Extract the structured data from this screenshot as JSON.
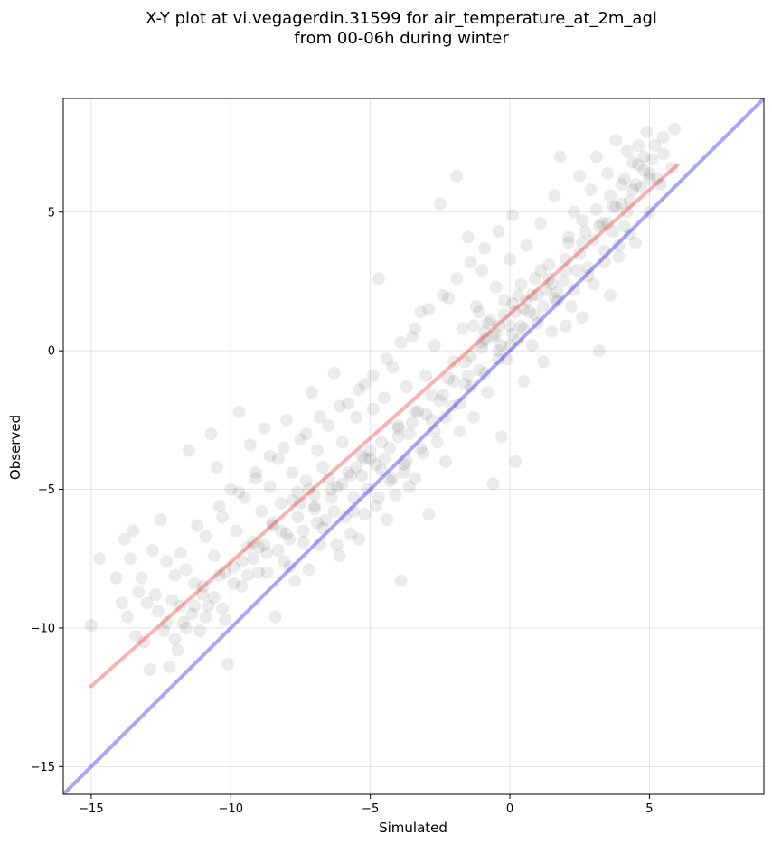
{
  "chart_data": {
    "type": "scatter",
    "title_lines": [
      "X-Y plot at vi.vegagerdin.31599 for air_temperature_at_2m_agl",
      "from 00-06h during winter"
    ],
    "xlabel": "Simulated",
    "ylabel": "Observed",
    "xlim": [
      -16,
      9.1
    ],
    "ylim": [
      -16,
      9.1
    ],
    "xticks": [
      -15,
      -10,
      -5,
      0,
      5
    ],
    "yticks": [
      -15,
      -10,
      -5,
      0,
      5
    ],
    "xtick_labels": [
      "−15",
      "−10",
      "−5",
      "0",
      "5"
    ],
    "ytick_labels": [
      "−15",
      "−10",
      "−5",
      "0",
      "5"
    ],
    "grid": true,
    "scatter_color": "#000000",
    "scatter_alpha": 0.08,
    "lines": [
      {
        "kind": "identity",
        "color": "#0000ff",
        "x": [
          -16,
          9.1
        ],
        "y": [
          -16,
          9.1
        ]
      },
      {
        "kind": "fit",
        "color": "#ee2222",
        "x": [
          -15,
          6
        ],
        "y": [
          -12.1,
          6.7
        ]
      }
    ],
    "points": [
      [
        -15.0,
        -9.9
      ],
      [
        -14.7,
        -7.5
      ],
      [
        -14.1,
        -8.2
      ],
      [
        -13.9,
        -9.1
      ],
      [
        -13.8,
        -6.8
      ],
      [
        -13.7,
        -9.6
      ],
      [
        -13.6,
        -7.5
      ],
      [
        -13.5,
        -6.5
      ],
      [
        -13.4,
        -10.3
      ],
      [
        -13.3,
        -8.7
      ],
      [
        -13.2,
        -8.2
      ],
      [
        -13.1,
        -10.5
      ],
      [
        -13.0,
        -9.1
      ],
      [
        -12.9,
        -11.5
      ],
      [
        -12.8,
        -7.2
      ],
      [
        -12.7,
        -8.8
      ],
      [
        -12.6,
        -9.4
      ],
      [
        -12.5,
        -6.1
      ],
      [
        -12.4,
        -10.1
      ],
      [
        -12.3,
        -7.6
      ],
      [
        -12.2,
        -11.4
      ],
      [
        -12.1,
        -9.0
      ],
      [
        -12.0,
        -8.1
      ],
      [
        -11.9,
        -10.8
      ],
      [
        -11.8,
        -7.3
      ],
      [
        -11.7,
        -9.8
      ],
      [
        -11.6,
        -7.9
      ],
      [
        -11.5,
        -3.6
      ],
      [
        -11.4,
        -9.5
      ],
      [
        -11.3,
        -8.4
      ],
      [
        -11.2,
        -6.3
      ],
      [
        -11.1,
        -10.1
      ],
      [
        -11.0,
        -8.8
      ],
      [
        -10.9,
        -6.7
      ],
      [
        -10.8,
        -9.2
      ],
      [
        -10.7,
        -3.0
      ],
      [
        -10.6,
        -7.4
      ],
      [
        -10.5,
        -4.2
      ],
      [
        -10.4,
        -8.1
      ],
      [
        -10.3,
        -6.0
      ],
      [
        -10.2,
        -9.7
      ],
      [
        -10.1,
        -11.3
      ],
      [
        -10.0,
        -5.0
      ],
      [
        -9.9,
        -7.8
      ],
      [
        -9.8,
        -6.5
      ],
      [
        -9.7,
        -2.2
      ],
      [
        -9.6,
        -8.5
      ],
      [
        -9.5,
        -5.3
      ],
      [
        -9.4,
        -7.1
      ],
      [
        -9.3,
        -3.4
      ],
      [
        -9.2,
        -6.9
      ],
      [
        -9.1,
        -4.6
      ],
      [
        -9.0,
        -8.0
      ],
      [
        -8.9,
        -5.8
      ],
      [
        -8.8,
        -2.8
      ],
      [
        -8.7,
        -7.3
      ],
      [
        -8.6,
        -4.9
      ],
      [
        -8.5,
        -6.2
      ],
      [
        -8.4,
        -9.6
      ],
      [
        -8.3,
        -3.9
      ],
      [
        -8.2,
        -5.5
      ],
      [
        -8.1,
        -7.6
      ],
      [
        -8.0,
        -2.5
      ],
      [
        -7.9,
        -6.8
      ],
      [
        -7.8,
        -4.4
      ],
      [
        -7.7,
        -8.3
      ],
      [
        -7.6,
        -5.1
      ],
      [
        -7.5,
        -3.2
      ],
      [
        -7.4,
        -6.5
      ],
      [
        -7.3,
        -4.7
      ],
      [
        -7.2,
        -7.9
      ],
      [
        -7.1,
        -1.5
      ],
      [
        -7.0,
        -5.7
      ],
      [
        -6.9,
        -3.6
      ],
      [
        -6.8,
        -7.0
      ],
      [
        -6.7,
        -4.2
      ],
      [
        -6.6,
        -6.1
      ],
      [
        -6.5,
        -2.7
      ],
      [
        -6.4,
        -5.3
      ],
      [
        -6.3,
        -0.8
      ],
      [
        -6.2,
        -4.9
      ],
      [
        -6.1,
        -7.4
      ],
      [
        -6.0,
        -3.3
      ],
      [
        -5.9,
        -6.0
      ],
      [
        -5.8,
        -1.9
      ],
      [
        -5.7,
        -4.5
      ],
      [
        -5.6,
        -5.8
      ],
      [
        -5.5,
        -2.4
      ],
      [
        -5.4,
        -6.8
      ],
      [
        -5.3,
        -3.8
      ],
      [
        -5.2,
        -1.2
      ],
      [
        -5.1,
        -5.0
      ],
      [
        -5.0,
        -3.9
      ],
      [
        -4.9,
        -2.1
      ],
      [
        -4.8,
        -5.6
      ],
      [
        -4.7,
        2.6
      ],
      [
        -4.6,
        -4.3
      ],
      [
        -4.5,
        -1.7
      ],
      [
        -4.4,
        -6.1
      ],
      [
        -4.3,
        -3.5
      ],
      [
        -4.2,
        -0.6
      ],
      [
        -4.1,
        -5.2
      ],
      [
        -4.0,
        -2.8
      ],
      [
        -3.9,
        -8.3
      ],
      [
        -3.8,
        -4.1
      ],
      [
        -3.7,
        -1.3
      ],
      [
        -3.6,
        -3.0
      ],
      [
        -3.5,
        0.5
      ],
      [
        -3.4,
        -4.6
      ],
      [
        -3.3,
        -2.2
      ],
      [
        -3.2,
        1.4
      ],
      [
        -3.1,
        -3.7
      ],
      [
        -3.0,
        -0.9
      ],
      [
        -2.9,
        -5.9
      ],
      [
        -2.8,
        -2.5
      ],
      [
        -2.7,
        0.2
      ],
      [
        -2.6,
        -3.3
      ],
      [
        -2.5,
        5.3
      ],
      [
        -2.4,
        -1.6
      ],
      [
        -2.3,
        -4.0
      ],
      [
        -2.2,
        1.9
      ],
      [
        -2.1,
        -2.0
      ],
      [
        -2.0,
        -0.4
      ],
      [
        -1.9,
        6.3
      ],
      [
        -1.8,
        -2.9
      ],
      [
        -1.7,
        0.8
      ],
      [
        -1.6,
        -1.2
      ],
      [
        -1.5,
        4.1
      ],
      [
        -1.4,
        -0.2
      ],
      [
        -1.3,
        -2.4
      ],
      [
        -1.2,
        1.6
      ],
      [
        -1.1,
        -0.7
      ],
      [
        -1.0,
        2.9
      ],
      [
        -0.9,
        0.4
      ],
      [
        -0.8,
        -1.5
      ],
      [
        -0.7,
        1.1
      ],
      [
        -0.6,
        -4.8
      ],
      [
        -0.5,
        2.3
      ],
      [
        -0.4,
        0.0
      ],
      [
        -0.3,
        -3.1
      ],
      [
        -0.2,
        1.8
      ],
      [
        -0.1,
        -0.3
      ],
      [
        0.0,
        3.3
      ],
      [
        0.1,
        0.6
      ],
      [
        0.2,
        -4.0
      ],
      [
        0.3,
        2.0
      ],
      [
        0.4,
        0.9
      ],
      [
        0.5,
        -1.1
      ],
      [
        0.6,
        3.8
      ],
      [
        0.7,
        1.4
      ],
      [
        0.8,
        0.2
      ],
      [
        0.9,
        2.6
      ],
      [
        1.0,
        1.0
      ],
      [
        1.1,
        4.6
      ],
      [
        1.2,
        -0.4
      ],
      [
        1.3,
        2.2
      ],
      [
        1.4,
        3.1
      ],
      [
        1.5,
        0.7
      ],
      [
        1.6,
        5.6
      ],
      [
        1.7,
        1.8
      ],
      [
        1.8,
        7.0
      ],
      [
        1.9,
        2.5
      ],
      [
        2.0,
        0.9
      ],
      [
        2.1,
        3.9
      ],
      [
        2.2,
        1.6
      ],
      [
        2.3,
        5.0
      ],
      [
        2.4,
        2.9
      ],
      [
        2.5,
        6.3
      ],
      [
        2.6,
        1.2
      ],
      [
        2.7,
        4.3
      ],
      [
        2.8,
        3.0
      ],
      [
        2.9,
        5.8
      ],
      [
        3.0,
        2.4
      ],
      [
        3.1,
        7.0
      ],
      [
        3.2,
        0.0
      ],
      [
        3.3,
        4.6
      ],
      [
        3.4,
        3.6
      ],
      [
        3.5,
        6.4
      ],
      [
        3.6,
        2.0
      ],
      [
        3.7,
        5.2
      ],
      [
        3.8,
        7.6
      ],
      [
        3.9,
        3.4
      ],
      [
        4.0,
        6.0
      ],
      [
        4.1,
        4.5
      ],
      [
        4.2,
        7.2
      ],
      [
        4.3,
        5.4
      ],
      [
        4.4,
        6.8
      ],
      [
        4.5,
        3.9
      ],
      [
        4.6,
        7.4
      ],
      [
        4.7,
        5.9
      ],
      [
        4.8,
        6.5
      ],
      [
        4.9,
        7.9
      ],
      [
        5.0,
        5.0
      ],
      [
        5.1,
        6.9
      ],
      [
        5.3,
        6.2
      ],
      [
        5.5,
        7.7
      ],
      [
        5.8,
        6.6
      ],
      [
        5.9,
        8.0
      ],
      [
        -9.0,
        -7.1
      ],
      [
        -8.5,
        -6.3
      ],
      [
        -8.0,
        -6.6
      ],
      [
        -7.5,
        -5.5
      ],
      [
        -7.0,
        -5.2
      ],
      [
        -6.5,
        -4.6
      ],
      [
        -6.0,
        -4.8
      ],
      [
        -5.5,
        -4.2
      ],
      [
        -5.0,
        -3.6
      ],
      [
        -4.5,
        -3.9
      ],
      [
        -4.0,
        -3.1
      ],
      [
        -3.5,
        -2.6
      ],
      [
        -3.0,
        -2.3
      ],
      [
        -2.5,
        -1.8
      ],
      [
        -2.0,
        -1.1
      ],
      [
        -1.5,
        -0.9
      ],
      [
        -1.0,
        0.1
      ],
      [
        -0.5,
        0.6
      ],
      [
        0.0,
        0.9
      ],
      [
        0.5,
        1.5
      ],
      [
        1.0,
        2.0
      ],
      [
        1.5,
        2.4
      ],
      [
        2.0,
        2.9
      ],
      [
        2.5,
        3.5
      ],
      [
        3.0,
        4.0
      ],
      [
        3.5,
        4.6
      ],
      [
        4.0,
        5.3
      ],
      [
        4.5,
        6.0
      ],
      [
        5.0,
        6.4
      ],
      [
        5.5,
        7.1
      ],
      [
        -11.8,
        -9.2
      ],
      [
        -11.0,
        -8.5
      ],
      [
        -10.2,
        -8.0
      ],
      [
        -9.6,
        -7.6
      ],
      [
        -8.8,
        -7.0
      ],
      [
        -8.2,
        -6.5
      ],
      [
        -7.6,
        -6.0
      ],
      [
        -7.0,
        -5.6
      ],
      [
        -6.4,
        -5.0
      ],
      [
        -5.8,
        -4.4
      ],
      [
        -5.2,
        -3.9
      ],
      [
        -4.6,
        -3.3
      ],
      [
        -4.0,
        -2.7
      ],
      [
        -3.4,
        -2.2
      ],
      [
        -2.8,
        -1.6
      ],
      [
        -2.2,
        -1.0
      ],
      [
        -1.6,
        -0.4
      ],
      [
        -1.0,
        0.3
      ],
      [
        -0.4,
        0.9
      ],
      [
        0.2,
        1.4
      ],
      [
        0.8,
        2.0
      ],
      [
        1.4,
        2.6
      ],
      [
        2.0,
        3.3
      ],
      [
        2.6,
        3.9
      ],
      [
        3.2,
        4.5
      ],
      [
        3.8,
        5.2
      ],
      [
        4.4,
        5.8
      ],
      [
        5.0,
        6.2
      ],
      [
        -4.3,
        -4.7
      ],
      [
        -3.8,
        -4.4
      ],
      [
        -3.6,
        -4.9
      ],
      [
        -4.8,
        -4.1
      ],
      [
        -5.3,
        -4.5
      ],
      [
        -5.6,
        -5.3
      ],
      [
        -6.3,
        -5.8
      ],
      [
        -6.9,
        -6.2
      ],
      [
        -7.2,
        -5.0
      ],
      [
        -7.8,
        -5.4
      ],
      [
        -0.8,
        1.0
      ],
      [
        -0.6,
        0.5
      ],
      [
        -0.2,
        1.3
      ],
      [
        0.3,
        0.4
      ],
      [
        0.6,
        1.8
      ],
      [
        1.2,
        1.6
      ],
      [
        1.7,
        2.1
      ],
      [
        2.3,
        2.2
      ],
      [
        2.8,
        2.7
      ],
      [
        3.4,
        3.2
      ],
      [
        3.9,
        3.8
      ],
      [
        4.3,
        4.2
      ],
      [
        -1.3,
        0.9
      ],
      [
        -1.1,
        1.4
      ],
      [
        -0.9,
        0.7
      ],
      [
        -0.3,
        0.2
      ],
      [
        0.1,
        1.7
      ],
      [
        0.4,
        2.4
      ],
      [
        0.9,
        1.3
      ],
      [
        1.1,
        2.9
      ],
      [
        1.6,
        1.9
      ],
      [
        2.1,
        4.1
      ],
      [
        2.6,
        4.7
      ],
      [
        3.1,
        5.1
      ],
      [
        3.6,
        5.6
      ],
      [
        4.1,
        6.2
      ],
      [
        4.6,
        6.7
      ],
      [
        4.8,
        7.0
      ],
      [
        5.2,
        7.4
      ],
      [
        5.4,
        6.0
      ],
      [
        4.2,
        5.0
      ],
      [
        3.7,
        4.3
      ],
      [
        -12.3,
        -9.8
      ],
      [
        -12.0,
        -10.4
      ],
      [
        -11.6,
        -10.0
      ],
      [
        -11.3,
        -9.2
      ],
      [
        -10.9,
        -9.6
      ],
      [
        -10.6,
        -8.9
      ],
      [
        -10.3,
        -9.3
      ],
      [
        -9.9,
        -8.4
      ],
      [
        -9.4,
        -8.1
      ],
      [
        -9.2,
        -7.5
      ],
      [
        -8.7,
        -8.0
      ],
      [
        -8.3,
        -7.2
      ],
      [
        -7.9,
        -7.8
      ],
      [
        -7.4,
        -6.9
      ],
      [
        -6.7,
        -6.4
      ],
      [
        -6.2,
        -7.0
      ],
      [
        -5.7,
        -6.6
      ],
      [
        -5.2,
        -5.9
      ],
      [
        -4.7,
        -5.3
      ],
      [
        -4.2,
        -4.6
      ],
      [
        -3.7,
        -4.0
      ],
      [
        -3.2,
        -3.5
      ],
      [
        -2.7,
        -2.9
      ],
      [
        -2.3,
        -2.4
      ],
      [
        -1.8,
        -1.9
      ],
      [
        -1.4,
        -1.3
      ],
      [
        -0.9,
        -0.8
      ],
      [
        -0.4,
        -0.3
      ],
      [
        0.0,
        0.2
      ],
      [
        0.5,
        0.8
      ],
      [
        -10.4,
        -5.6
      ],
      [
        -9.7,
        -5.1
      ],
      [
        -9.1,
        -4.4
      ],
      [
        -8.6,
        -3.8
      ],
      [
        -8.1,
        -3.5
      ],
      [
        -7.3,
        -3.0
      ],
      [
        -6.8,
        -2.4
      ],
      [
        -6.1,
        -2.0
      ],
      [
        -5.4,
        -1.4
      ],
      [
        -4.9,
        -0.9
      ],
      [
        -4.4,
        -0.3
      ],
      [
        -3.9,
        0.3
      ],
      [
        -3.4,
        0.8
      ],
      [
        -2.9,
        1.5
      ],
      [
        -2.4,
        2.0
      ],
      [
        -1.9,
        2.6
      ],
      [
        -1.4,
        3.2
      ],
      [
        -0.9,
        3.7
      ],
      [
        -0.4,
        4.3
      ],
      [
        0.1,
        4.9
      ]
    ]
  }
}
